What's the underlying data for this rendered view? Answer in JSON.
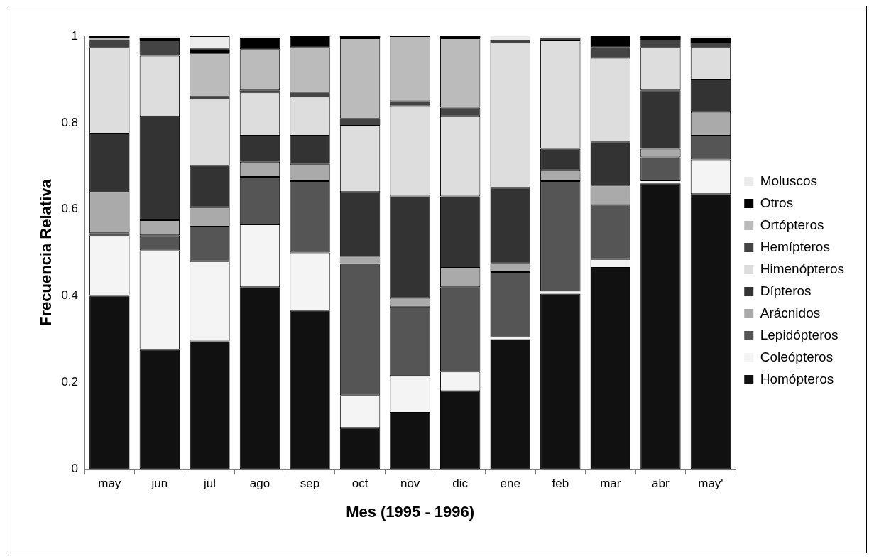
{
  "chart_data": {
    "type": "bar",
    "stacked": true,
    "xlabel": "Mes (1995 - 1996)",
    "ylabel": "Frecuencia Relativa",
    "categories": [
      "may",
      "jun",
      "jul",
      "ago",
      "sep",
      "oct",
      "nov",
      "dic",
      "ene",
      "feb",
      "mar",
      "abr",
      "may'"
    ],
    "ylim": [
      0,
      1
    ],
    "yticks": [
      0,
      0.2,
      0.4,
      0.6,
      0.8,
      1
    ],
    "grid": false,
    "legend": "right",
    "series": [
      {
        "name": "Homópteros",
        "color": "#111111",
        "values": [
          0.4,
          0.275,
          0.295,
          0.42,
          0.365,
          0.095,
          0.13,
          0.18,
          0.3,
          0.405,
          0.465,
          0.66,
          0.635
        ]
      },
      {
        "name": "Coleópteros",
        "color": "#f4f4f4",
        "values": [
          0.14,
          0.23,
          0.185,
          0.145,
          0.135,
          0.075,
          0.085,
          0.045,
          0.005,
          0.005,
          0.02,
          0.005,
          0.08
        ]
      },
      {
        "name": "Lepidópteros",
        "color": "#555555",
        "values": [
          0.005,
          0.035,
          0.08,
          0.11,
          0.165,
          0.305,
          0.16,
          0.195,
          0.15,
          0.255,
          0.125,
          0.055,
          0.055
        ]
      },
      {
        "name": "Arácnidos",
        "color": "#aaaaaa",
        "values": [
          0.095,
          0.035,
          0.045,
          0.035,
          0.04,
          0.015,
          0.02,
          0.045,
          0.02,
          0.025,
          0.045,
          0.02,
          0.055
        ]
      },
      {
        "name": "Dípteros",
        "color": "#333333",
        "values": [
          0.135,
          0.24,
          0.095,
          0.06,
          0.065,
          0.15,
          0.235,
          0.165,
          0.175,
          0.05,
          0.1,
          0.135,
          0.075
        ]
      },
      {
        "name": "Himenópteros",
        "color": "#dddddd",
        "values": [
          0.2,
          0.14,
          0.155,
          0.1,
          0.09,
          0.155,
          0.21,
          0.185,
          0.335,
          0.25,
          0.195,
          0.1,
          0.075
        ]
      },
      {
        "name": "Hemípteros",
        "color": "#444444",
        "values": [
          0.015,
          0.035,
          0.005,
          0.005,
          0.01,
          0.015,
          0.01,
          0.02,
          0.005,
          0.005,
          0.025,
          0.015,
          0.01
        ]
      },
      {
        "name": "Ortópteros",
        "color": "#bbbbbb",
        "values": [
          0.005,
          0,
          0.1,
          0.095,
          0.105,
          0.185,
          0.15,
          0.16,
          0,
          0,
          0,
          0,
          0
        ]
      },
      {
        "name": "Otros",
        "color": "#000000",
        "values": [
          0.005,
          0.005,
          0.01,
          0.025,
          0.025,
          0.005,
          0,
          0.005,
          0,
          0,
          0.025,
          0.01,
          0.01
        ]
      },
      {
        "name": "Moluscos",
        "color": "#ececec",
        "values": [
          0,
          0.005,
          0.03,
          0.005,
          0,
          0,
          0,
          0,
          0.01,
          0.005,
          0,
          0,
          0.005
        ]
      }
    ]
  }
}
